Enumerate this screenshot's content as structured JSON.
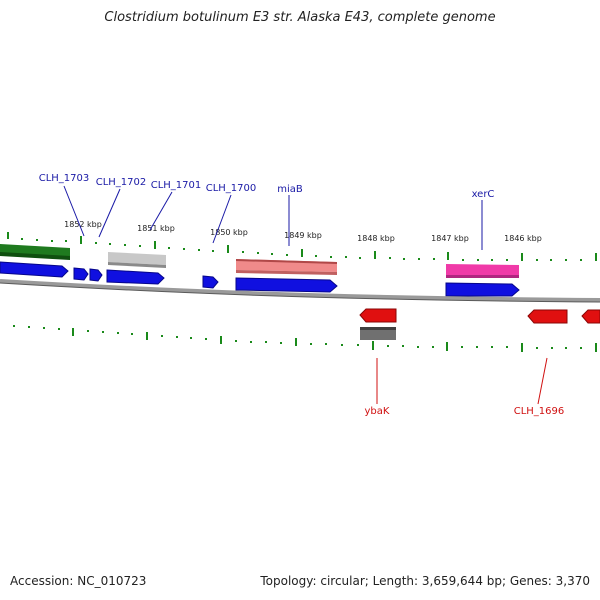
{
  "title": "Clostridium botulinum E3 str. Alaska E43, complete genome",
  "accession": "Accession: NC_010723",
  "topology": "Topology: circular; Length: 3,659,644 bp; Genes: 3,370",
  "scale_labels": [
    "1852 kbp",
    "1851 kbp",
    "1850 kbp",
    "1849 kbp",
    "1848 kbp",
    "1847 kbp",
    "1846 kbp"
  ],
  "forward_gene_labels": [
    "CLH_1703",
    "CLH_1702",
    "CLH_1701",
    "CLH_1700",
    "miaB",
    "xerC"
  ],
  "reverse_gene_labels": [
    "ybaK",
    "CLH_1696"
  ],
  "colors": {
    "forward_gene": "#1010e0",
    "reverse_gene": "#e01010",
    "forward_label": "#1a1aa6",
    "reverse_label": "#d01010",
    "tick": "#1a8a1a",
    "backbone": "#808080"
  }
}
